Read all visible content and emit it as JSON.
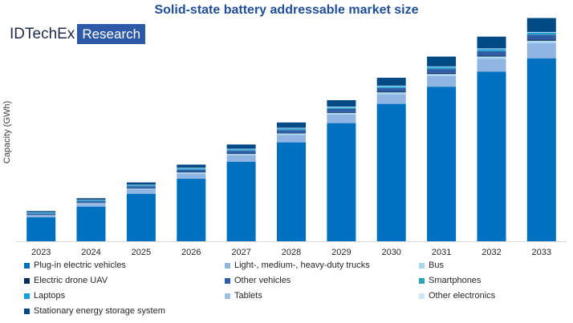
{
  "chart_data": {
    "type": "bar",
    "stacked": true,
    "title": "Solid-state battery addressable market size",
    "xlabel": "",
    "ylabel": "Capacity (GWh)",
    "categories": [
      "2023",
      "2024",
      "2025",
      "2026",
      "2027",
      "2028",
      "2029",
      "2030",
      "2031",
      "2032",
      "2033"
    ],
    "ylim": [
      0,
      100
    ],
    "series": [
      {
        "name": "Plug-in electric vehicles",
        "color": "#0070c0",
        "values": [
          11.2,
          16.2,
          22.2,
          29.2,
          37.2,
          46.2,
          55.2,
          64.2,
          72.2,
          79.2,
          85.5
        ]
      },
      {
        "name": "Light-, medium-, heavy-duty trucks",
        "color": "#8fb5e3",
        "values": [
          0.8,
          1.3,
          2.0,
          2.5,
          3.0,
          3.5,
          4.0,
          4.5,
          5.0,
          6.0,
          7.0
        ]
      },
      {
        "name": "Bus",
        "color": "#a9d8ee",
        "values": [
          0.2,
          0.3,
          0.4,
          0.5,
          0.6,
          0.7,
          0.8,
          0.9,
          1.0,
          1.1,
          1.2
        ]
      },
      {
        "name": "Electric drone UAV",
        "color": "#0a2a5a",
        "values": [
          0.1,
          0.1,
          0.2,
          0.2,
          0.3,
          0.3,
          0.4,
          0.4,
          0.5,
          0.5,
          0.6
        ]
      },
      {
        "name": "Other vehicles",
        "color": "#2f5ea8",
        "values": [
          0.6,
          0.8,
          0.9,
          1.0,
          1.2,
          1.3,
          1.5,
          1.6,
          1.8,
          2.0,
          2.2
        ]
      },
      {
        "name": "Smartphones",
        "color": "#2aa3b8",
        "values": [
          0.2,
          0.2,
          0.3,
          0.3,
          0.3,
          0.4,
          0.4,
          0.4,
          0.5,
          0.5,
          0.5
        ]
      },
      {
        "name": "Laptops",
        "color": "#119ee6",
        "values": [
          0.2,
          0.2,
          0.2,
          0.3,
          0.3,
          0.3,
          0.3,
          0.4,
          0.4,
          0.4,
          0.4
        ]
      },
      {
        "name": "Tablets",
        "color": "#9cc2e8",
        "values": [
          0.1,
          0.1,
          0.1,
          0.2,
          0.2,
          0.2,
          0.2,
          0.2,
          0.2,
          0.3,
          0.3
        ]
      },
      {
        "name": "Other electronics",
        "color": "#cfe6f6",
        "values": [
          0.1,
          0.1,
          0.1,
          0.1,
          0.1,
          0.1,
          0.1,
          0.1,
          0.1,
          0.1,
          0.1
        ]
      },
      {
        "name": "Stationary energy storage system",
        "color": "#004a85",
        "values": [
          0.6,
          0.8,
          1.1,
          1.5,
          2.0,
          2.5,
          3.0,
          3.7,
          4.6,
          5.5,
          6.5
        ]
      }
    ]
  },
  "branding": {
    "brand": "IDTechEx",
    "suffix": "Research"
  }
}
